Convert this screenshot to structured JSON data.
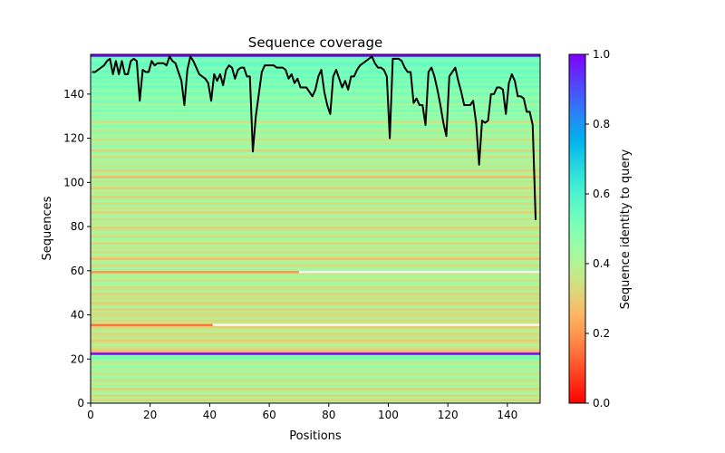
{
  "chart_data": {
    "type": "heatmap",
    "title": "Sequence coverage",
    "xlabel": "Positions",
    "ylabel": "Sequences",
    "xlim": [
      0,
      151
    ],
    "ylim": [
      0,
      158
    ],
    "xticks": [
      0,
      20,
      40,
      60,
      80,
      100,
      120,
      140
    ],
    "yticks": [
      0,
      20,
      40,
      60,
      80,
      100,
      120,
      140
    ],
    "colorbar": {
      "label": "Sequence identity to query",
      "colormap": "rainbow_r",
      "range": [
        0,
        1
      ],
      "ticks": [
        "0.0",
        "0.2",
        "0.4",
        "0.6",
        "0.8",
        "1.0"
      ]
    },
    "row_identity": [
      0.42,
      0.3,
      0.4,
      0.32,
      0.44,
      0.38,
      0.3,
      0.45,
      0.36,
      0.42,
      0.33,
      0.46,
      0.4,
      0.35,
      0.45,
      0.38,
      0.48,
      0.4,
      0.36,
      0.47,
      0.5,
      0.48,
      1.0,
      0.25,
      0.33,
      0.36,
      0.4,
      0.33,
      0.3,
      0.38,
      0.35,
      0.32,
      0.4,
      0.36,
      0.3,
      0.15,
      0.36,
      0.32,
      0.4,
      0.33,
      0.33,
      0.38,
      0.3,
      0.42,
      0.35,
      0.3,
      0.4,
      0.33,
      0.37,
      0.3,
      0.42,
      0.36,
      0.33,
      0.4,
      0.45,
      0.35,
      0.38,
      0.42,
      0.36,
      0.2,
      0.45,
      0.38,
      0.33,
      0.42,
      0.4,
      0.25,
      0.36,
      0.42,
      0.33,
      0.4,
      0.36,
      0.42,
      0.3,
      0.4,
      0.45,
      0.33,
      0.38,
      0.42,
      0.36,
      0.3,
      0.4,
      0.36,
      0.42,
      0.33,
      0.45,
      0.38,
      0.3,
      0.4,
      0.35,
      0.42,
      0.33,
      0.45,
      0.38,
      0.3,
      0.42,
      0.36,
      0.4,
      0.3,
      0.38,
      0.42,
      0.35,
      0.45,
      0.25,
      0.4,
      0.38,
      0.3,
      0.46,
      0.36,
      0.42,
      0.38,
      0.45,
      0.33,
      0.4,
      0.46,
      0.3,
      0.42,
      0.48,
      0.38,
      0.44,
      0.33,
      0.46,
      0.4,
      0.48,
      0.36,
      0.44,
      0.5,
      0.42,
      0.34,
      0.48,
      0.45,
      0.5,
      0.42,
      0.52,
      0.46,
      0.5,
      0.4,
      0.52,
      0.48,
      0.44,
      0.5,
      0.52,
      0.46,
      0.5,
      0.54,
      0.48,
      0.52,
      0.5,
      0.55,
      0.5,
      0.53,
      0.55,
      0.5,
      0.52,
      0.56,
      0.54,
      0.5,
      0.55,
      1.0
    ],
    "partial_rows": [
      {
        "row": 35,
        "xmax": 41
      },
      {
        "row": 59,
        "xmax": 70
      }
    ],
    "coverage": {
      "name": "coverage",
      "x": [
        0,
        1,
        2,
        3,
        4,
        5,
        6,
        7,
        8,
        9,
        10,
        11,
        12,
        13,
        14,
        15,
        16,
        17,
        18,
        19,
        20,
        21,
        22,
        23,
        24,
        25,
        26,
        27,
        28,
        29,
        30,
        31,
        32,
        33,
        34,
        35,
        36,
        37,
        38,
        39,
        40,
        41,
        42,
        43,
        44,
        45,
        46,
        47,
        48,
        49,
        50,
        51,
        52,
        53,
        54,
        55,
        56,
        57,
        58,
        59,
        60,
        61,
        62,
        63,
        64,
        65,
        66,
        67,
        68,
        69,
        70,
        71,
        72,
        73,
        74,
        75,
        76,
        77,
        78,
        79,
        80,
        81,
        82,
        83,
        84,
        85,
        86,
        87,
        88,
        89,
        90,
        91,
        92,
        93,
        94,
        95,
        96,
        97,
        98,
        99,
        100,
        101,
        102,
        103,
        104,
        105,
        106,
        107,
        108,
        109,
        110,
        111,
        112,
        113,
        114,
        115,
        116,
        117,
        118,
        119,
        120,
        121,
        122,
        123,
        124,
        125,
        126,
        127,
        128,
        129,
        130,
        131,
        132,
        133,
        134,
        135,
        136,
        137,
        138,
        139,
        140,
        141,
        142,
        143,
        144,
        145,
        146,
        147,
        148,
        149
      ],
      "y": [
        150,
        150,
        151,
        152,
        153,
        155,
        156,
        149,
        155,
        149,
        155,
        149,
        149,
        155,
        156,
        155,
        137,
        151,
        150,
        150,
        155,
        153,
        154,
        154,
        154,
        153,
        157,
        155,
        154,
        150,
        146,
        135,
        151,
        157,
        155,
        152,
        149,
        148,
        147,
        145,
        137,
        149,
        146,
        149,
        144,
        151,
        153,
        152,
        147,
        151,
        152,
        152,
        148,
        148,
        114,
        130,
        140,
        150,
        153,
        153,
        153,
        153,
        152,
        152,
        152,
        151,
        147,
        149,
        145,
        147,
        143,
        143,
        143,
        141,
        139,
        142,
        148,
        151,
        141,
        135,
        131,
        148,
        151,
        147,
        143,
        146,
        142,
        148,
        148,
        151,
        153,
        154,
        155,
        156,
        157,
        154,
        152,
        152,
        151,
        148,
        120,
        156,
        156,
        156,
        155,
        152,
        150,
        150,
        136,
        138,
        135,
        135,
        126,
        150,
        152,
        148,
        142,
        135,
        127,
        121,
        148,
        150,
        152,
        146,
        141,
        135,
        135,
        135,
        137,
        127,
        108,
        128,
        127,
        128,
        140,
        140,
        143,
        143,
        142,
        131,
        145,
        149,
        146,
        139,
        139,
        138,
        132,
        132,
        126,
        83
      ]
    }
  }
}
